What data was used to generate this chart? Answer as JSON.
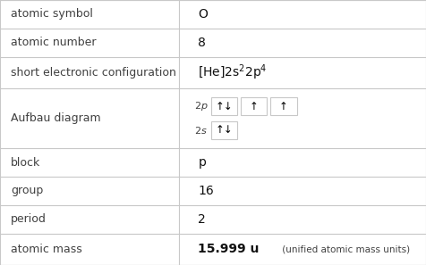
{
  "rows": [
    {
      "label": "atomic symbol",
      "value": "O",
      "type": "text"
    },
    {
      "label": "atomic number",
      "value": "8",
      "type": "text"
    },
    {
      "label": "short electronic configuration",
      "value": "",
      "type": "config"
    },
    {
      "label": "Aufbau diagram",
      "value": "",
      "type": "aufbau"
    },
    {
      "label": "block",
      "value": "p",
      "type": "text"
    },
    {
      "label": "group",
      "value": "16",
      "type": "text"
    },
    {
      "label": "period",
      "value": "2",
      "type": "text"
    },
    {
      "label": "atomic mass",
      "value": "15.999 u",
      "suffix": " (unified atomic mass units)",
      "type": "mass"
    }
  ],
  "col_split": 0.42,
  "bg_color": "#ffffff",
  "border_color": "#c8c8c8",
  "label_color": "#404040",
  "value_color": "#111111",
  "font_size": 9.0,
  "row_heights": [
    1.0,
    1.0,
    1.1,
    2.1,
    1.0,
    1.0,
    1.0,
    1.1
  ],
  "aufbau_2p": [
    "↑↓",
    "↑",
    "↑"
  ],
  "aufbau_2s": [
    "↑↓"
  ]
}
